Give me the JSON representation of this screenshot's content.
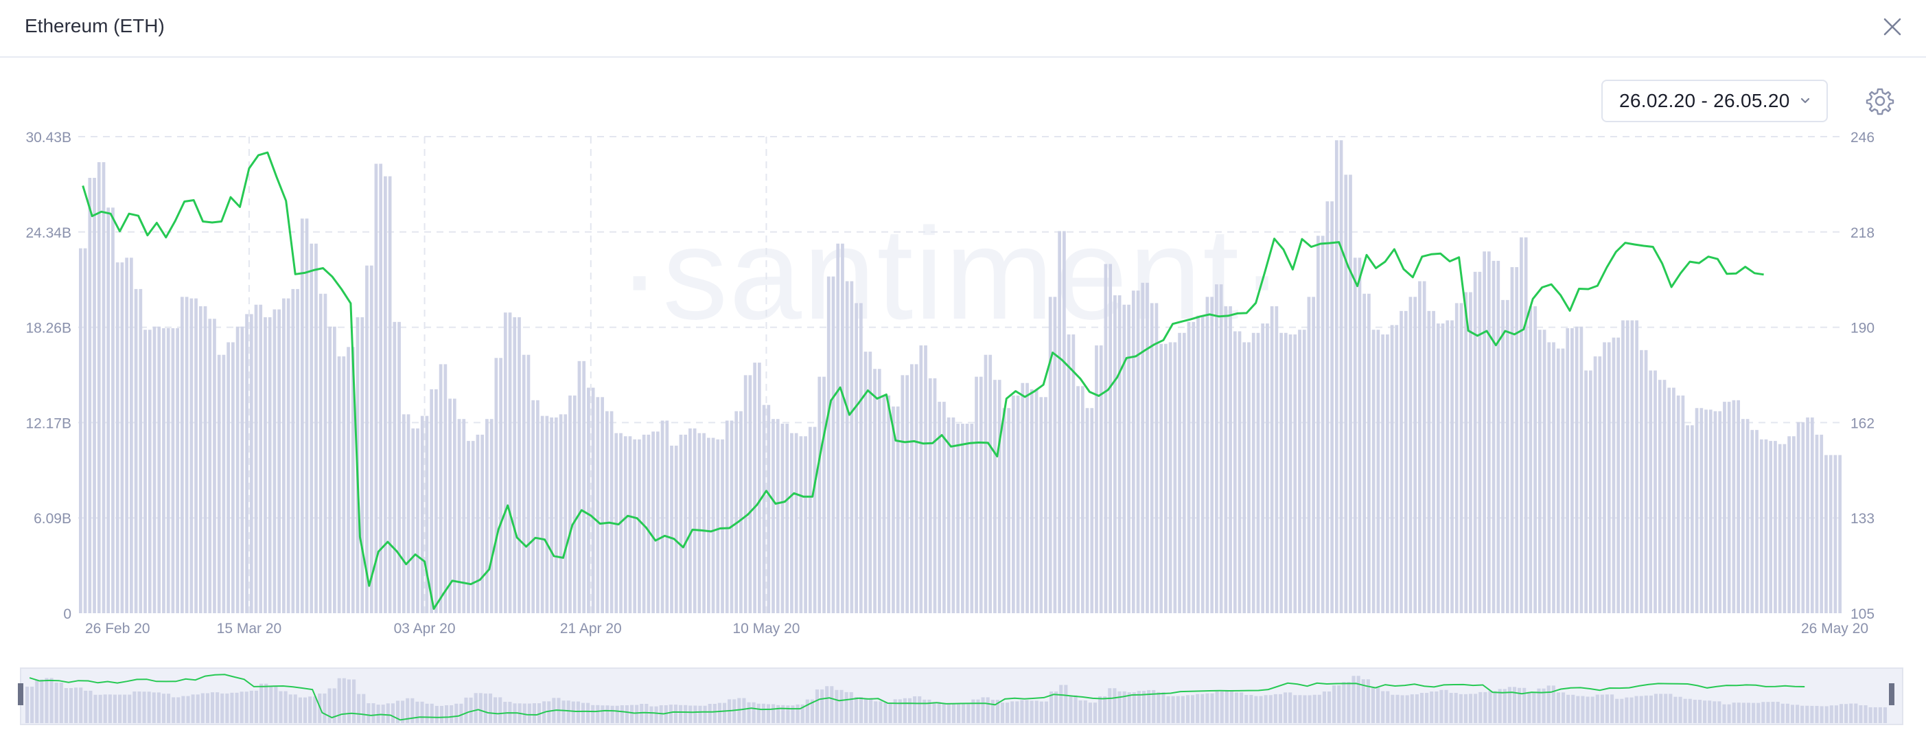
{
  "window": {
    "title": "Ethereum (ETH)"
  },
  "controls": {
    "date_range": "26.02.20 - 26.05.20"
  },
  "watermark": "·santiment·",
  "colors": {
    "bars": "#cfd3e6",
    "line": "#26c953",
    "axis_text": "#8a91ac",
    "grid": "#e3e6ef"
  },
  "icons": {
    "close": "close-icon",
    "chevron": "chevron-down-icon",
    "settings": "gear-icon"
  },
  "chart_data": {
    "type": "bar+line",
    "x_ticks": [
      "26 Feb 20",
      "15 Mar 20",
      "03 Apr 20",
      "21 Apr 20",
      "10 May 20",
      "26 May 20"
    ],
    "y_left_ticks": [
      "0",
      "6.09B",
      "12.17B",
      "18.26B",
      "24.34B",
      "30.43B"
    ],
    "y_left_range": [
      0,
      30.43
    ],
    "y_right_ticks": [
      "105",
      "133",
      "162",
      "190",
      "218",
      "246"
    ],
    "y_right_range": [
      105,
      246
    ],
    "grid": "dashed",
    "series": [
      {
        "kind": "bar",
        "unit": "B",
        "values": [
          23.3,
          27.8,
          28.8,
          25.9,
          22.4,
          22.7,
          20.7,
          18.1,
          18.3,
          18.2,
          18.2,
          20.2,
          20.1,
          19.6,
          18.8,
          16.5,
          17.3,
          18.3,
          19.1,
          19.7,
          18.9,
          19.4,
          20.1,
          20.7,
          25.2,
          23.6,
          20.4,
          18.3,
          16.4,
          17.0,
          18.9,
          22.2,
          28.7,
          27.9,
          18.6,
          12.7,
          11.8,
          12.6,
          14.3,
          15.9,
          13.7,
          12.4,
          11.0,
          11.4,
          12.4,
          16.3,
          19.2,
          18.9,
          16.5,
          13.6,
          12.6,
          12.5,
          12.7,
          13.9,
          16.1,
          14.4,
          13.8,
          12.9,
          11.5,
          11.3,
          11.1,
          11.4,
          11.6,
          12.3,
          10.7,
          11.4,
          11.8,
          11.5,
          11.2,
          11.1,
          12.3,
          12.9,
          15.2,
          16.0,
          13.3,
          12.4,
          12.1,
          11.5,
          11.3,
          11.9,
          15.1,
          21.5,
          23.6,
          21.2,
          19.8,
          16.7,
          15.6,
          13.9,
          13.2,
          15.2,
          15.9,
          17.1,
          15.0,
          13.5,
          12.5,
          12.1,
          12.1,
          15.1,
          16.5,
          14.9,
          13.1,
          13.9,
          14.7,
          14.3,
          13.8,
          20.2,
          24.4,
          17.8,
          14.5,
          13.1,
          17.1,
          22.3,
          20.3,
          19.7,
          20.6,
          21.1,
          19.8,
          17.2,
          17.3,
          17.9,
          18.6,
          19.0,
          20.2,
          21.0,
          19.6,
          18.0,
          17.3,
          17.9,
          18.5,
          19.6,
          17.9,
          17.8,
          18.1,
          20.2,
          24.1,
          26.3,
          30.2,
          28.0,
          22.7,
          20.4,
          18.1,
          17.8,
          18.4,
          19.3,
          20.2,
          21.2,
          19.3,
          18.5,
          18.7,
          19.8,
          20.5,
          21.8,
          23.1,
          22.5,
          20.0,
          22.1,
          24.0,
          19.6,
          18.1,
          17.3,
          16.9,
          18.2,
          18.3,
          15.5,
          16.4,
          17.3,
          17.6,
          18.7,
          18.7,
          16.8,
          15.5,
          14.9,
          14.4,
          13.9,
          12.0,
          13.1,
          13.0,
          12.9,
          13.5,
          13.6,
          12.4,
          11.7,
          11.1,
          11.0,
          10.8,
          11.3,
          12.2,
          12.5,
          11.4,
          10.1,
          10.1
        ]
      },
      {
        "kind": "line",
        "values": [
          231.5,
          222.5,
          223.8,
          223.2,
          218,
          223.2,
          222.6,
          216.8,
          220.5,
          216.2,
          221.1,
          226.8,
          227.2,
          220.9,
          220.6,
          220.9,
          228.1,
          225.2,
          236.6,
          240.5,
          241.3,
          233.9,
          227,
          205.3,
          205.7,
          206.5,
          207.1,
          204.6,
          200.9,
          196.7,
          127.6,
          113.1,
          123.2,
          126.1,
          123.3,
          119.5,
          122.4,
          120.3,
          106.3,
          110.6,
          114.6,
          114.1,
          113.6,
          114.9,
          118,
          129.8,
          136.9,
          127.4,
          124.7,
          127.3,
          126.8,
          121.9,
          121.4,
          131.1,
          135.5,
          133.9,
          131.5,
          131.8,
          131.3,
          133.8,
          133.1,
          130.3,
          126.5,
          127.9,
          127,
          124.5,
          129.7,
          129.5,
          129.2,
          130.1,
          130.2,
          132.1,
          134.2,
          137.1,
          141.2,
          137.4,
          138,
          140.5,
          139.5,
          139.5,
          154.4,
          167.9,
          171.8,
          163.7,
          167.2,
          170.9,
          168.5,
          169.7,
          156.1,
          155.6,
          155.9,
          155.2,
          155.3,
          157.7,
          154.3,
          154.8,
          155.3,
          155.5,
          155.4,
          151.4,
          168.5,
          170.7,
          169,
          170.6,
          172.6,
          182.1,
          180,
          177.2,
          174.4,
          170.5,
          169.3,
          171.1,
          174.8,
          180.5,
          181,
          182.8,
          184.5,
          185.8,
          190.6,
          191.3,
          192,
          192.8,
          193.4,
          192.8,
          193,
          193.7,
          193.8,
          196.8,
          206.1,
          215.8,
          212.6,
          206.7,
          215.7,
          213.4,
          214.3,
          214.5,
          214.8,
          207.6,
          201.8,
          211,
          207.1,
          209,
          212.7,
          206.8,
          204.4,
          210.5,
          211.2,
          211.4,
          209.1,
          210.3,
          188.6,
          187.1,
          188.5,
          184.3,
          188.5,
          187.5,
          189,
          198,
          201.4,
          202.3,
          199.1,
          194.5,
          201,
          200.9,
          201.9,
          207.3,
          211.9,
          214.6,
          214.1,
          213.7,
          213.4,
          208.5,
          201.5,
          205.6,
          209,
          208.6,
          210.5,
          209.8,
          205.4,
          205.5,
          207.5,
          205.6,
          205.2
        ]
      }
    ]
  }
}
